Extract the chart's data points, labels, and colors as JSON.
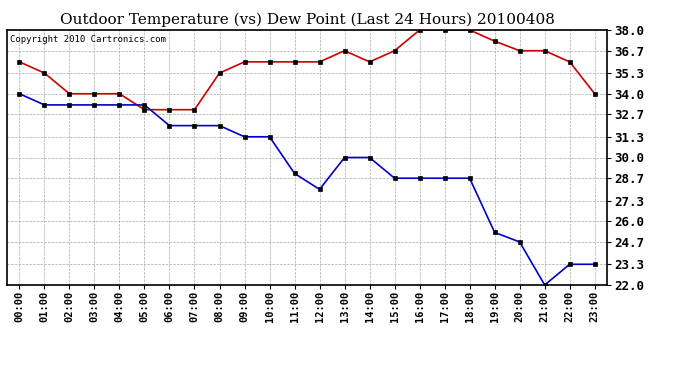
{
  "title": "Outdoor Temperature (vs) Dew Point (Last 24 Hours) 20100408",
  "copyright_text": "Copyright 2010 Cartronics.com",
  "x_labels": [
    "00:00",
    "01:00",
    "02:00",
    "03:00",
    "04:00",
    "05:00",
    "06:00",
    "07:00",
    "08:00",
    "09:00",
    "10:00",
    "11:00",
    "12:00",
    "13:00",
    "14:00",
    "15:00",
    "16:00",
    "17:00",
    "18:00",
    "19:00",
    "20:00",
    "21:00",
    "22:00",
    "23:00"
  ],
  "temp_data": [
    36.0,
    35.3,
    34.0,
    34.0,
    34.0,
    33.0,
    33.0,
    33.0,
    35.3,
    36.0,
    36.0,
    36.0,
    36.0,
    36.7,
    36.0,
    36.7,
    38.0,
    38.0,
    38.0,
    37.3,
    36.7,
    36.7,
    36.0,
    34.0
  ],
  "dew_data": [
    34.0,
    33.3,
    33.3,
    33.3,
    33.3,
    33.3,
    32.0,
    32.0,
    32.0,
    31.3,
    31.3,
    29.0,
    28.0,
    30.0,
    30.0,
    28.7,
    28.7,
    28.7,
    28.7,
    25.3,
    24.7,
    22.0,
    23.3,
    23.3
  ],
  "temp_color": "#cc0000",
  "dew_color": "#0000cc",
  "bg_color": "#ffffff",
  "grid_color": "#aaaaaa",
  "ylim_min": 22.0,
  "ylim_max": 38.0,
  "yticks": [
    22.0,
    23.3,
    24.7,
    26.0,
    27.3,
    28.7,
    30.0,
    31.3,
    32.7,
    34.0,
    35.3,
    36.7,
    38.0
  ],
  "title_fontsize": 11,
  "copyright_fontsize": 6.5,
  "tick_fontsize": 7.5,
  "ytick_fontsize": 9,
  "marker": "s",
  "marker_size": 3,
  "linewidth": 1.2
}
